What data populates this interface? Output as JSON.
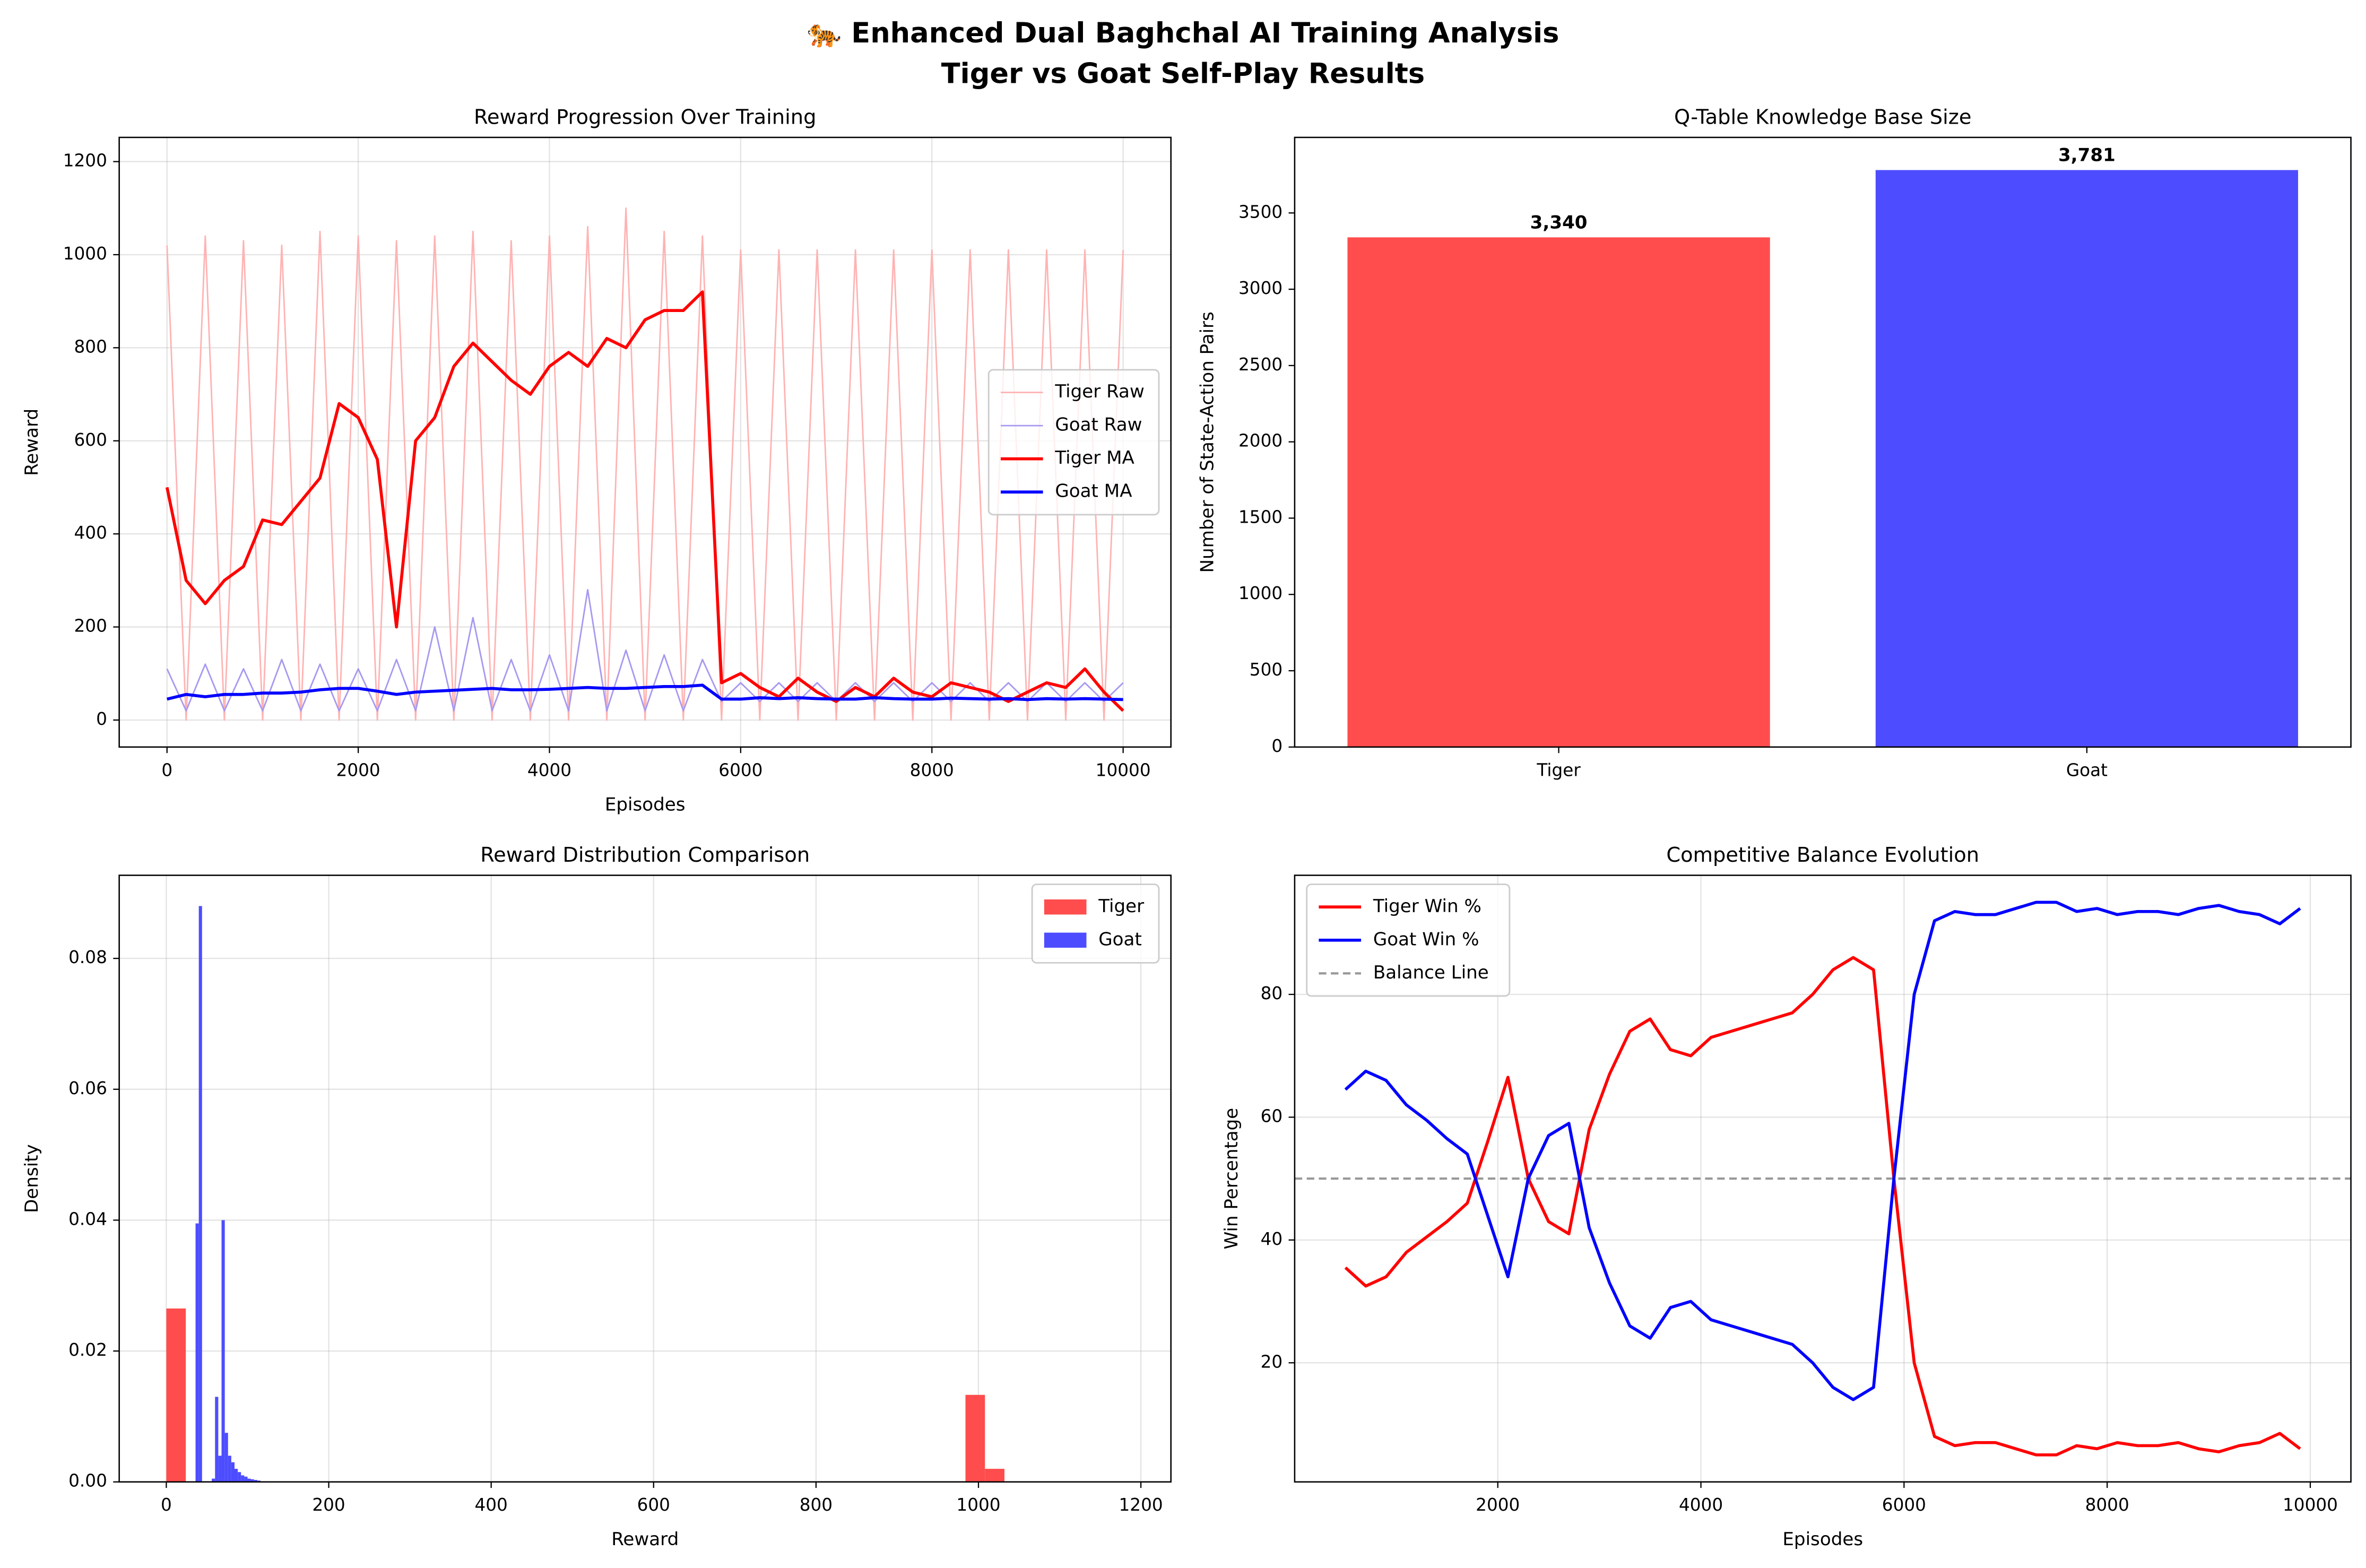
{
  "title": "🐅 Enhanced Dual Baghchal AI Training Analysis",
  "subtitle": "Tiger vs Goat Self-Play Results",
  "chart_data": [
    {
      "type": "line",
      "title": "Reward Progression Over Training",
      "xlabel": "Episodes",
      "ylabel": "Reward",
      "xlim": [
        -500,
        10500
      ],
      "ylim": [
        -58,
        1252
      ],
      "xticks": [
        0,
        2000,
        4000,
        6000,
        8000,
        10000
      ],
      "yticks": [
        0,
        200,
        400,
        600,
        800,
        1000,
        1200
      ],
      "grid": true,
      "legend": "center right",
      "x": [
        0,
        200,
        400,
        600,
        800,
        1000,
        1200,
        1400,
        1600,
        1800,
        2000,
        2200,
        2400,
        2600,
        2800,
        3000,
        3200,
        3400,
        3600,
        3800,
        4000,
        4200,
        4400,
        4600,
        4800,
        5000,
        5200,
        5400,
        5600,
        5800,
        6000,
        6200,
        6400,
        6600,
        6800,
        7000,
        7200,
        7400,
        7600,
        7800,
        8000,
        8200,
        8400,
        8600,
        8800,
        9000,
        9200,
        9400,
        9600,
        9800,
        10000
      ],
      "series": [
        {
          "name": "Tiger Raw",
          "color": "#ffb3b3",
          "linewidth": 1,
          "values": [
            1020,
            0,
            1040,
            0,
            1030,
            0,
            1020,
            0,
            1050,
            0,
            1040,
            0,
            1030,
            0,
            1040,
            0,
            1050,
            0,
            1030,
            0,
            1040,
            0,
            1060,
            0,
            1100,
            0,
            1050,
            0,
            1040,
            0,
            1010,
            0,
            1010,
            0,
            1010,
            0,
            1010,
            0,
            1010,
            0,
            1010,
            0,
            1010,
            0,
            1010,
            0,
            1010,
            0,
            1010,
            0,
            1010
          ]
        },
        {
          "name": "Goat Raw",
          "color": "#a899f0",
          "linewidth": 1,
          "values": [
            110,
            20,
            120,
            20,
            110,
            20,
            130,
            20,
            120,
            20,
            110,
            20,
            130,
            20,
            200,
            20,
            220,
            20,
            130,
            20,
            140,
            20,
            280,
            20,
            150,
            20,
            140,
            20,
            130,
            40,
            80,
            40,
            80,
            40,
            80,
            40,
            80,
            40,
            80,
            40,
            80,
            40,
            80,
            40,
            80,
            40,
            80,
            40,
            80,
            40,
            80
          ]
        },
        {
          "name": "Tiger MA",
          "color": "#ff0000",
          "linewidth": 2,
          "values": [
            500,
            300,
            250,
            300,
            330,
            430,
            420,
            470,
            520,
            680,
            650,
            560,
            200,
            600,
            650,
            760,
            810,
            770,
            730,
            700,
            760,
            790,
            760,
            820,
            800,
            860,
            880,
            880,
            920,
            80,
            100,
            70,
            50,
            90,
            60,
            40,
            70,
            50,
            90,
            60,
            50,
            80,
            70,
            60,
            40,
            60,
            80,
            70,
            110,
            60,
            20
          ]
        },
        {
          "name": "Goat MA",
          "color": "#0000ff",
          "linewidth": 2,
          "values": [
            45,
            55,
            50,
            55,
            55,
            58,
            58,
            60,
            65,
            68,
            68,
            62,
            55,
            60,
            62,
            64,
            66,
            68,
            65,
            65,
            66,
            68,
            70,
            68,
            68,
            70,
            72,
            72,
            75,
            45,
            45,
            48,
            46,
            48,
            46,
            45,
            45,
            48,
            46,
            45,
            45,
            47,
            46,
            45,
            46,
            44,
            46,
            45,
            46,
            45,
            44
          ]
        }
      ]
    },
    {
      "type": "bar",
      "title": "Q-Table Knowledge Base Size",
      "ylabel": "Number of State-Action Pairs",
      "categories": [
        "Tiger",
        "Goat"
      ],
      "values": [
        3340,
        3781
      ],
      "value_labels": [
        "3,340",
        "3,781"
      ],
      "colors": [
        "#ff4d4d",
        "#4d4dff"
      ],
      "ylim": [
        0,
        3995
      ],
      "yticks": [
        0,
        500,
        1000,
        1500,
        2000,
        2500,
        3000,
        3500
      ],
      "grid": false
    },
    {
      "type": "histogram",
      "title": "Reward Distribution Comparison",
      "xlabel": "Reward",
      "ylabel": "Density",
      "xlim": [
        -58,
        1237
      ],
      "ylim": [
        0,
        0.0927
      ],
      "xticks": [
        0,
        200,
        400,
        600,
        800,
        1000,
        1200
      ],
      "yticks": [
        {
          "value": 0,
          "label": "0.00"
        },
        {
          "value": 0.02,
          "label": "0.02"
        },
        {
          "value": 0.04,
          "label": "0.04"
        },
        {
          "value": 0.06,
          "label": "0.06"
        },
        {
          "value": 0.08,
          "label": "0.08"
        }
      ],
      "grid": true,
      "legend": "upper right",
      "series": [
        {
          "name": "Tiger",
          "color": "#ff4d4d",
          "bins": [
            0,
            24,
            48,
            72,
            96,
            120,
            144,
            168,
            192,
            216,
            240,
            264,
            288,
            312,
            336,
            360,
            384,
            408,
            432,
            456,
            480,
            504,
            528,
            552,
            576,
            600,
            624,
            648,
            672,
            696,
            720,
            744,
            768,
            792,
            816,
            840,
            864,
            888,
            912,
            936,
            960,
            984,
            1008,
            1032,
            1056,
            1080,
            1104,
            1128,
            1152,
            1176,
            1200
          ],
          "values": [
            0.0265,
            0,
            0,
            0,
            0,
            0,
            0,
            0,
            0,
            0,
            0,
            0,
            0,
            0,
            0,
            0,
            0,
            0,
            0,
            0,
            0,
            0,
            0,
            0,
            0,
            0,
            0,
            0,
            0,
            0,
            0,
            0,
            0,
            0,
            0,
            0,
            0,
            0,
            0,
            0,
            0,
            0.0133,
            0.002,
            0,
            0,
            0,
            0,
            0,
            0,
            0
          ]
        },
        {
          "name": "Goat",
          "color": "#4d4dff",
          "bins": [
            0,
            4,
            8,
            12,
            16,
            20,
            24,
            28,
            32,
            36,
            40,
            44,
            48,
            52,
            56,
            60,
            64,
            68,
            72,
            76,
            80,
            84,
            88,
            92,
            96,
            100,
            104,
            108,
            112,
            116,
            120,
            124,
            128,
            132,
            136,
            140
          ],
          "values": [
            0,
            0,
            0,
            0,
            0,
            0,
            0,
            0,
            0,
            0.0395,
            0.088,
            0,
            0,
            0,
            0.0005,
            0.013,
            0.004,
            0.04,
            0.0075,
            0.004,
            0.003,
            0.002,
            0.0015,
            0.001,
            0.0008,
            0.0005,
            0.0004,
            0.0003,
            0.0002,
            0,
            0,
            0,
            0,
            0,
            0
          ]
        }
      ]
    },
    {
      "type": "line",
      "title": "Competitive Balance Evolution",
      "xlabel": "Episodes",
      "ylabel": "Win Percentage",
      "xlim": [
        0,
        10400
      ],
      "ylim": [
        0.6,
        99.4
      ],
      "xticks": [
        2000,
        4000,
        6000,
        8000,
        10000
      ],
      "yticks": [
        20,
        40,
        60,
        80
      ],
      "grid": true,
      "legend": "upper left",
      "x": [
        500,
        700,
        900,
        1100,
        1300,
        1500,
        1700,
        1900,
        2100,
        2300,
        2500,
        2700,
        2900,
        3100,
        3300,
        3500,
        3700,
        3900,
        4100,
        4300,
        4500,
        4700,
        4900,
        5100,
        5300,
        5500,
        5700,
        5900,
        6100,
        6300,
        6500,
        6700,
        6900,
        7100,
        7300,
        7500,
        7700,
        7900,
        8100,
        8300,
        8500,
        8700,
        8900,
        9100,
        9300,
        9500,
        9700,
        9900
      ],
      "series": [
        {
          "name": "Tiger Win %",
          "color": "#ff0000",
          "linewidth": 2,
          "values": [
            35.5,
            32.5,
            34,
            38,
            40.5,
            43,
            46,
            56,
            66.5,
            50,
            43,
            41,
            58,
            67,
            74,
            76,
            71,
            70,
            73,
            74,
            75,
            76,
            77,
            80,
            84,
            86,
            84,
            50,
            20,
            8,
            6.5,
            7,
            7,
            6,
            5,
            5,
            6.5,
            6,
            7,
            6.5,
            6.5,
            7,
            6,
            5.5,
            6.5,
            7,
            8.5,
            6
          ]
        },
        {
          "name": "Goat Win %",
          "color": "#0000ff",
          "linewidth": 2,
          "values": [
            64.5,
            67.5,
            66,
            62,
            59.5,
            56.5,
            54,
            44,
            34,
            50,
            57,
            59,
            42,
            33,
            26,
            24,
            29,
            30,
            27,
            26,
            25,
            24,
            23,
            20,
            16,
            14,
            16,
            50,
            80,
            92,
            93.5,
            93,
            93,
            94,
            95,
            95,
            93.5,
            94,
            93,
            93.5,
            93.5,
            93,
            94,
            94.5,
            93.5,
            93,
            91.5,
            94
          ]
        }
      ],
      "hlines": [
        {
          "name": "Balance Line",
          "value": 50,
          "color": "#999999",
          "dash": true
        }
      ]
    }
  ]
}
